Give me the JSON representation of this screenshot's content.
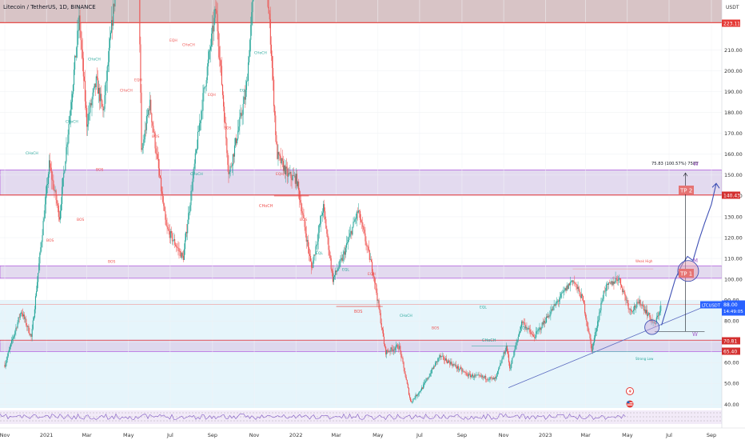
{
  "header": {
    "title": "Litecoin / TetherUS, 1D, BINANCE",
    "currency": "USDT"
  },
  "colors": {
    "up": "#26a69a",
    "down": "#ef5350",
    "zone_fill": "#d9cdea",
    "zone_edge": "#a33ad8",
    "red_line": "#e53935",
    "projection": "#3f51b5",
    "trendline": "#5c6bc0",
    "target_tag": "#d32f2f",
    "current_tag": "#2962ff"
  },
  "price_tags": {
    "top": "223.11",
    "tp2": "140.43",
    "current_symbol": "LTCUSDT",
    "current_price": "88.00",
    "current_time": "14:49:05",
    "support_upper": "70.81",
    "support_lower": "65.40"
  },
  "annotations": {
    "tp2": "TP 2",
    "tp1": "TP 1",
    "measure": "75.83 (100.57%) 7583",
    "wave_w_top": "W",
    "wave_m": "M",
    "wave_w_bottom": "W",
    "choch_main": "CHoCH",
    "bos_main": "BOS",
    "choch_low": "CHoCH",
    "weak_high": "Weak High",
    "strong_low": "Strong Low"
  },
  "small_labels": [
    "CHoCH",
    "BOS",
    "CHoCH",
    "BOS",
    "CHoCH",
    "BOS",
    "BOS",
    "CHoCH",
    "EQH",
    "BOS",
    "EQH",
    "CHoCH",
    "CHoCH",
    "EQH",
    "BOS",
    "EQL",
    "CHoCH",
    "EQH",
    "BOS",
    "EQL",
    "EQL",
    "EQH",
    "CHoCH",
    "BOS",
    "EQL",
    "EQL"
  ],
  "chart_data": {
    "type": "candlestick",
    "title": "Litecoin / TetherUS, 1D, BINANCE",
    "ylabel": "USDT",
    "y_ticks": [
      40,
      50,
      60,
      70,
      80,
      90,
      100,
      110,
      120,
      130,
      140,
      150,
      160,
      170,
      180,
      190,
      200,
      210
    ],
    "y_tick_labels": [
      "40.00",
      "50.00",
      "60.00",
      "70.00",
      "80.00",
      "90.00",
      "100.00",
      "110.00",
      "120.00",
      "130.00",
      "140.00",
      "150.00",
      "160.00",
      "170.00",
      "180.00",
      "190.00",
      "200.00",
      "210.00"
    ],
    "x_tick_labels": [
      "Nov",
      "2021",
      "Mar",
      "May",
      "Jul",
      "Sep",
      "Nov",
      "2022",
      "Mar",
      "May",
      "Jul",
      "Sep",
      "Nov",
      "2023",
      "Mar",
      "May",
      "Jul",
      "Sep"
    ],
    "x_tick_dates": [
      "2020-11-01",
      "2021-01-01",
      "2021-03-01",
      "2021-05-01",
      "2021-07-01",
      "2021-09-01",
      "2021-11-01",
      "2022-01-01",
      "2022-03-01",
      "2022-05-01",
      "2022-07-01",
      "2022-09-01",
      "2022-11-01",
      "2023-01-01",
      "2023-03-01",
      "2023-05-01",
      "2023-07-01",
      "2023-09-01"
    ],
    "price_path": [
      [
        "2020-11-01",
        59
      ],
      [
        "2020-11-25",
        85
      ],
      [
        "2020-12-10",
        72
      ],
      [
        "2021-01-05",
        155
      ],
      [
        "2021-01-20",
        130
      ],
      [
        "2021-02-18",
        225
      ],
      [
        "2021-03-01",
        175
      ],
      [
        "2021-03-15",
        195
      ],
      [
        "2021-03-25",
        180
      ],
      [
        "2021-04-18",
        260
      ],
      [
        "2021-05-10",
        380
      ],
      [
        "2021-05-20",
        160
      ],
      [
        "2021-06-01",
        185
      ],
      [
        "2021-06-25",
        125
      ],
      [
        "2021-07-20",
        110
      ],
      [
        "2021-08-15",
        180
      ],
      [
        "2021-09-06",
        230
      ],
      [
        "2021-09-25",
        150
      ],
      [
        "2021-10-20",
        190
      ],
      [
        "2021-11-10",
        280
      ],
      [
        "2021-11-25",
        215
      ],
      [
        "2021-12-04",
        160
      ],
      [
        "2021-12-20",
        150
      ],
      [
        "2022-01-02",
        148
      ],
      [
        "2022-01-24",
        105
      ],
      [
        "2022-02-10",
        135
      ],
      [
        "2022-02-24",
        100
      ],
      [
        "2022-03-10",
        110
      ],
      [
        "2022-04-02",
        133
      ],
      [
        "2022-04-25",
        102
      ],
      [
        "2022-05-12",
        65
      ],
      [
        "2022-06-01",
        68
      ],
      [
        "2022-06-18",
        41
      ],
      [
        "2022-07-05",
        48
      ],
      [
        "2022-07-30",
        63
      ],
      [
        "2022-08-15",
        60
      ],
      [
        "2022-09-10",
        54
      ],
      [
        "2022-10-01",
        53
      ],
      [
        "2022-10-20",
        52
      ],
      [
        "2022-11-05",
        68
      ],
      [
        "2022-11-10",
        57
      ],
      [
        "2022-11-28",
        80
      ],
      [
        "2022-12-15",
        72
      ],
      [
        "2023-01-20",
        90
      ],
      [
        "2023-02-10",
        100
      ],
      [
        "2023-02-25",
        90
      ],
      [
        "2023-03-10",
        66
      ],
      [
        "2023-03-28",
        95
      ],
      [
        "2023-04-18",
        101
      ],
      [
        "2023-05-05",
        85
      ],
      [
        "2023-05-20",
        89
      ],
      [
        "2023-06-10",
        78
      ],
      [
        "2023-06-20",
        88
      ]
    ],
    "projection_path": [
      [
        "2023-06-20",
        78
      ],
      [
        "2023-07-01",
        90
      ],
      [
        "2023-07-10",
        100
      ],
      [
        "2023-07-20",
        107
      ],
      [
        "2023-07-28",
        111
      ],
      [
        "2023-08-05",
        109
      ],
      [
        "2023-08-14",
        119
      ],
      [
        "2023-08-22",
        127
      ],
      [
        "2023-09-01",
        136
      ],
      [
        "2023-09-08",
        146
      ]
    ],
    "zones": [
      {
        "from": 140.43,
        "to": 152.5
      },
      {
        "from": 100.5,
        "to": 106.5
      },
      {
        "from": 65.4,
        "to": 70.81
      },
      {
        "from": 223.11,
        "to": 245
      }
    ],
    "horizontal_lines": [
      223.11,
      140.43,
      88.0
    ]
  }
}
